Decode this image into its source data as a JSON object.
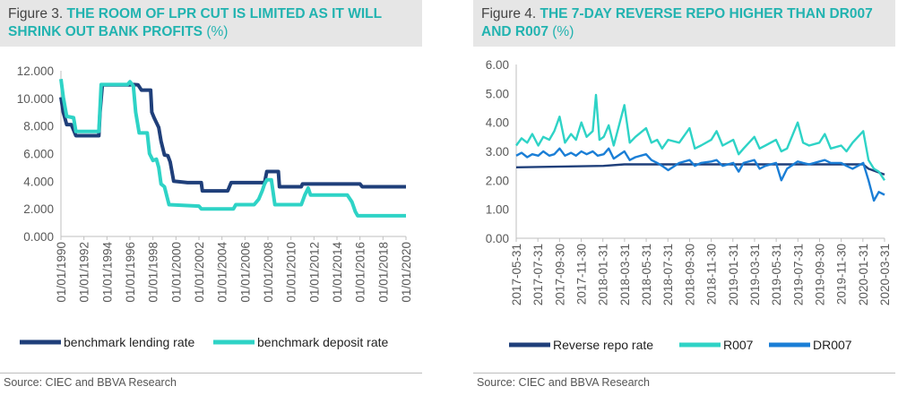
{
  "left": {
    "fig_label": "Figure 3.",
    "title": "THE ROOM OF LPR CUT IS LIMITED AS IT WILL SHRINK OUT BANK PROFITS",
    "unit": "(%)",
    "source": "Source: CIEC and BBVA Research"
  },
  "right": {
    "fig_label": "Figure 4.",
    "title": "THE 7-DAY REVERSE REPO HIGHER THAN DR007 AND R007",
    "unit": "(%)",
    "source": "Source: CIEC and BBVA Research"
  },
  "chart_data": [
    {
      "type": "line",
      "x_tick_labels": [
        "01/01/1990",
        "01/01/1992",
        "01/01/1994",
        "01/01/1996",
        "01/01/1998",
        "01/01/2000",
        "01/01/2002",
        "01/01/2004",
        "01/01/2006",
        "01/01/2008",
        "01/01/2010",
        "01/01/2012",
        "01/01/2014",
        "01/01/2016",
        "01/01/2018",
        "01/01/2020"
      ],
      "xlim": [
        1990,
        2020
      ],
      "y_tick_labels": [
        "0.000",
        "2.000",
        "4.000",
        "6.000",
        "8.000",
        "10.000",
        "12.000"
      ],
      "ylim": [
        0,
        12
      ],
      "grid": false,
      "legend_position": "bottom",
      "series": [
        {
          "name": "benchmark lending rate",
          "color": "#1f3f7a",
          "points": [
            [
              1990.0,
              10.08
            ],
            [
              1990.2,
              9.0
            ],
            [
              1990.5,
              8.1
            ],
            [
              1990.9,
              8.1
            ],
            [
              1991.3,
              7.3
            ],
            [
              1993.3,
              7.3
            ],
            [
              1993.4,
              9.0
            ],
            [
              1993.6,
              10.98
            ],
            [
              1996.0,
              10.98
            ],
            [
              1996.3,
              11.0
            ],
            [
              1996.7,
              10.98
            ],
            [
              1997.0,
              10.6
            ],
            [
              1997.8,
              10.6
            ],
            [
              1997.9,
              9.0
            ],
            [
              1998.1,
              8.6
            ],
            [
              1998.5,
              7.9
            ],
            [
              1998.7,
              6.9
            ],
            [
              1999.0,
              5.9
            ],
            [
              1999.3,
              5.85
            ],
            [
              1999.5,
              5.4
            ],
            [
              1999.8,
              4.0
            ],
            [
              2001.0,
              3.9
            ],
            [
              2002.2,
              3.9
            ],
            [
              2002.3,
              3.3
            ],
            [
              2004.5,
              3.3
            ],
            [
              2004.8,
              3.9
            ],
            [
              2007.7,
              3.9
            ],
            [
              2007.9,
              4.7
            ],
            [
              2008.9,
              4.7
            ],
            [
              2009.0,
              3.6
            ],
            [
              2010.9,
              3.6
            ],
            [
              2011.0,
              3.8
            ],
            [
              2016.0,
              3.8
            ],
            [
              2016.2,
              3.6
            ],
            [
              2020.0,
              3.6
            ]
          ]
        },
        {
          "name": "benchmark deposit rate",
          "color": "#2ed3c6",
          "points": [
            [
              1990.0,
              11.4
            ],
            [
              1990.2,
              10.1
            ],
            [
              1990.5,
              8.7
            ],
            [
              1991.1,
              8.6
            ],
            [
              1991.3,
              7.6
            ],
            [
              1993.3,
              7.6
            ],
            [
              1993.5,
              11.0
            ],
            [
              1995.8,
              11.0
            ],
            [
              1996.0,
              11.2
            ],
            [
              1996.3,
              10.9
            ],
            [
              1996.5,
              9.0
            ],
            [
              1996.8,
              7.5
            ],
            [
              1997.5,
              7.5
            ],
            [
              1997.7,
              6.0
            ],
            [
              1998.0,
              5.5
            ],
            [
              1998.3,
              5.6
            ],
            [
              1998.5,
              5.0
            ],
            [
              1998.7,
              3.8
            ],
            [
              1999.0,
              3.6
            ],
            [
              1999.4,
              2.3
            ],
            [
              2002.0,
              2.2
            ],
            [
              2002.2,
              2.0
            ],
            [
              2005.0,
              2.0
            ],
            [
              2005.2,
              2.3
            ],
            [
              2006.8,
              2.3
            ],
            [
              2007.2,
              2.7
            ],
            [
              2007.5,
              3.3
            ],
            [
              2007.7,
              3.8
            ],
            [
              2007.9,
              4.1
            ],
            [
              2008.3,
              4.1
            ],
            [
              2008.6,
              2.3
            ],
            [
              2010.9,
              2.3
            ],
            [
              2011.2,
              3.0
            ],
            [
              2011.5,
              3.5
            ],
            [
              2011.7,
              3.0
            ],
            [
              2014.9,
              3.0
            ],
            [
              2015.3,
              2.5
            ],
            [
              2015.6,
              1.8
            ],
            [
              2015.8,
              1.5
            ],
            [
              2020.0,
              1.5
            ]
          ]
        }
      ]
    },
    {
      "type": "line",
      "x_tick_labels": [
        "2017-05-31",
        "2017-07-31",
        "2017-09-30",
        "2017-11-30",
        "2018-01-31",
        "2018-03-31",
        "2018-05-31",
        "2018-07-31",
        "2018-09-30",
        "2018-11-30",
        "2019-01-31",
        "2019-03-31",
        "2019-05-31",
        "2019-07-31",
        "2019-09-30",
        "2019-11-30",
        "2020-01-31",
        "2020-03-31"
      ],
      "xlim": [
        "2017-05-31",
        "2020-03-31"
      ],
      "y_tick_labels": [
        "0.00",
        "1.00",
        "2.00",
        "3.00",
        "4.00",
        "5.00",
        "6.00"
      ],
      "ylim": [
        0,
        6
      ],
      "grid": false,
      "legend_position": "bottom",
      "series": [
        {
          "name": "Reverse repo rate",
          "color": "#1f3f7a",
          "points": [
            [
              "2017-05-31",
              2.45
            ],
            [
              "2018-01-31",
              2.5
            ],
            [
              "2018-03-31",
              2.55
            ],
            [
              "2018-05-31",
              2.55
            ],
            [
              "2019-11-30",
              2.55
            ],
            [
              "2020-01-31",
              2.55
            ],
            [
              "2020-02-15",
              2.4
            ],
            [
              "2020-03-31",
              2.2
            ]
          ]
        },
        {
          "name": "R007",
          "color": "#2ed3c6",
          "points": [
            [
              "2017-05-31",
              3.2
            ],
            [
              "2017-06-15",
              3.45
            ],
            [
              "2017-07-01",
              3.3
            ],
            [
              "2017-07-15",
              3.6
            ],
            [
              "2017-08-01",
              3.2
            ],
            [
              "2017-08-15",
              3.5
            ],
            [
              "2017-09-01",
              3.4
            ],
            [
              "2017-09-15",
              3.7
            ],
            [
              "2017-09-30",
              4.2
            ],
            [
              "2017-10-15",
              3.3
            ],
            [
              "2017-11-01",
              3.6
            ],
            [
              "2017-11-15",
              3.4
            ],
            [
              "2017-11-30",
              4.0
            ],
            [
              "2017-12-15",
              3.5
            ],
            [
              "2018-01-01",
              3.7
            ],
            [
              "2018-01-10",
              4.95
            ],
            [
              "2018-01-20",
              3.4
            ],
            [
              "2018-02-01",
              3.5
            ],
            [
              "2018-02-15",
              3.9
            ],
            [
              "2018-03-01",
              3.2
            ],
            [
              "2018-03-31",
              4.6
            ],
            [
              "2018-04-15",
              3.3
            ],
            [
              "2018-05-01",
              3.5
            ],
            [
              "2018-05-31",
              3.8
            ],
            [
              "2018-06-15",
              3.3
            ],
            [
              "2018-07-01",
              3.4
            ],
            [
              "2018-07-15",
              3.1
            ],
            [
              "2018-08-01",
              3.4
            ],
            [
              "2018-09-01",
              3.3
            ],
            [
              "2018-09-30",
              3.8
            ],
            [
              "2018-10-15",
              3.1
            ],
            [
              "2018-11-01",
              3.2
            ],
            [
              "2018-11-30",
              3.4
            ],
            [
              "2018-12-15",
              3.7
            ],
            [
              "2019-01-01",
              3.2
            ],
            [
              "2019-01-31",
              3.4
            ],
            [
              "2019-02-15",
              2.9
            ],
            [
              "2019-03-01",
              3.1
            ],
            [
              "2019-03-31",
              3.5
            ],
            [
              "2019-04-15",
              3.1
            ],
            [
              "2019-05-01",
              3.2
            ],
            [
              "2019-05-31",
              3.4
            ],
            [
              "2019-06-15",
              3.0
            ],
            [
              "2019-07-01",
              3.1
            ],
            [
              "2019-07-31",
              4.0
            ],
            [
              "2019-08-15",
              3.3
            ],
            [
              "2019-09-01",
              3.2
            ],
            [
              "2019-09-30",
              3.3
            ],
            [
              "2019-10-15",
              3.6
            ],
            [
              "2019-11-01",
              3.1
            ],
            [
              "2019-11-30",
              3.2
            ],
            [
              "2019-12-15",
              3.0
            ],
            [
              "2020-01-01",
              3.3
            ],
            [
              "2020-01-31",
              3.7
            ],
            [
              "2020-02-15",
              2.7
            ],
            [
              "2020-03-01",
              2.4
            ],
            [
              "2020-03-15",
              2.3
            ],
            [
              "2020-03-31",
              2.0
            ]
          ]
        },
        {
          "name": "DR007",
          "color": "#1a7ed6",
          "points": [
            [
              "2017-05-31",
              2.85
            ],
            [
              "2017-06-15",
              2.95
            ],
            [
              "2017-07-01",
              2.8
            ],
            [
              "2017-07-15",
              2.9
            ],
            [
              "2017-08-01",
              2.85
            ],
            [
              "2017-08-15",
              3.0
            ],
            [
              "2017-09-01",
              2.85
            ],
            [
              "2017-09-15",
              2.9
            ],
            [
              "2017-09-30",
              3.1
            ],
            [
              "2017-10-15",
              2.85
            ],
            [
              "2017-11-01",
              2.95
            ],
            [
              "2017-11-15",
              2.85
            ],
            [
              "2017-11-30",
              3.0
            ],
            [
              "2017-12-15",
              2.9
            ],
            [
              "2018-01-01",
              3.0
            ],
            [
              "2018-01-15",
              2.85
            ],
            [
              "2018-02-01",
              2.9
            ],
            [
              "2018-02-15",
              3.1
            ],
            [
              "2018-03-01",
              2.75
            ],
            [
              "2018-03-31",
              3.0
            ],
            [
              "2018-04-15",
              2.7
            ],
            [
              "2018-05-01",
              2.8
            ],
            [
              "2018-05-31",
              2.9
            ],
            [
              "2018-06-15",
              2.7
            ],
            [
              "2018-07-01",
              2.6
            ],
            [
              "2018-07-15",
              2.5
            ],
            [
              "2018-08-01",
              2.35
            ],
            [
              "2018-09-01",
              2.6
            ],
            [
              "2018-09-30",
              2.7
            ],
            [
              "2018-10-15",
              2.5
            ],
            [
              "2018-11-01",
              2.6
            ],
            [
              "2018-11-30",
              2.65
            ],
            [
              "2018-12-15",
              2.7
            ],
            [
              "2019-01-01",
              2.5
            ],
            [
              "2019-01-31",
              2.6
            ],
            [
              "2019-02-15",
              2.3
            ],
            [
              "2019-03-01",
              2.6
            ],
            [
              "2019-03-31",
              2.7
            ],
            [
              "2019-04-15",
              2.4
            ],
            [
              "2019-05-01",
              2.5
            ],
            [
              "2019-05-31",
              2.6
            ],
            [
              "2019-06-15",
              2.0
            ],
            [
              "2019-07-01",
              2.4
            ],
            [
              "2019-07-31",
              2.65
            ],
            [
              "2019-08-15",
              2.6
            ],
            [
              "2019-09-01",
              2.55
            ],
            [
              "2019-09-30",
              2.65
            ],
            [
              "2019-10-15",
              2.7
            ],
            [
              "2019-11-01",
              2.6
            ],
            [
              "2019-11-30",
              2.6
            ],
            [
              "2019-12-15",
              2.5
            ],
            [
              "2020-01-01",
              2.4
            ],
            [
              "2020-01-31",
              2.6
            ],
            [
              "2020-02-15",
              2.0
            ],
            [
              "2020-03-01",
              1.3
            ],
            [
              "2020-03-15",
              1.6
            ],
            [
              "2020-03-31",
              1.5
            ]
          ]
        }
      ]
    }
  ]
}
